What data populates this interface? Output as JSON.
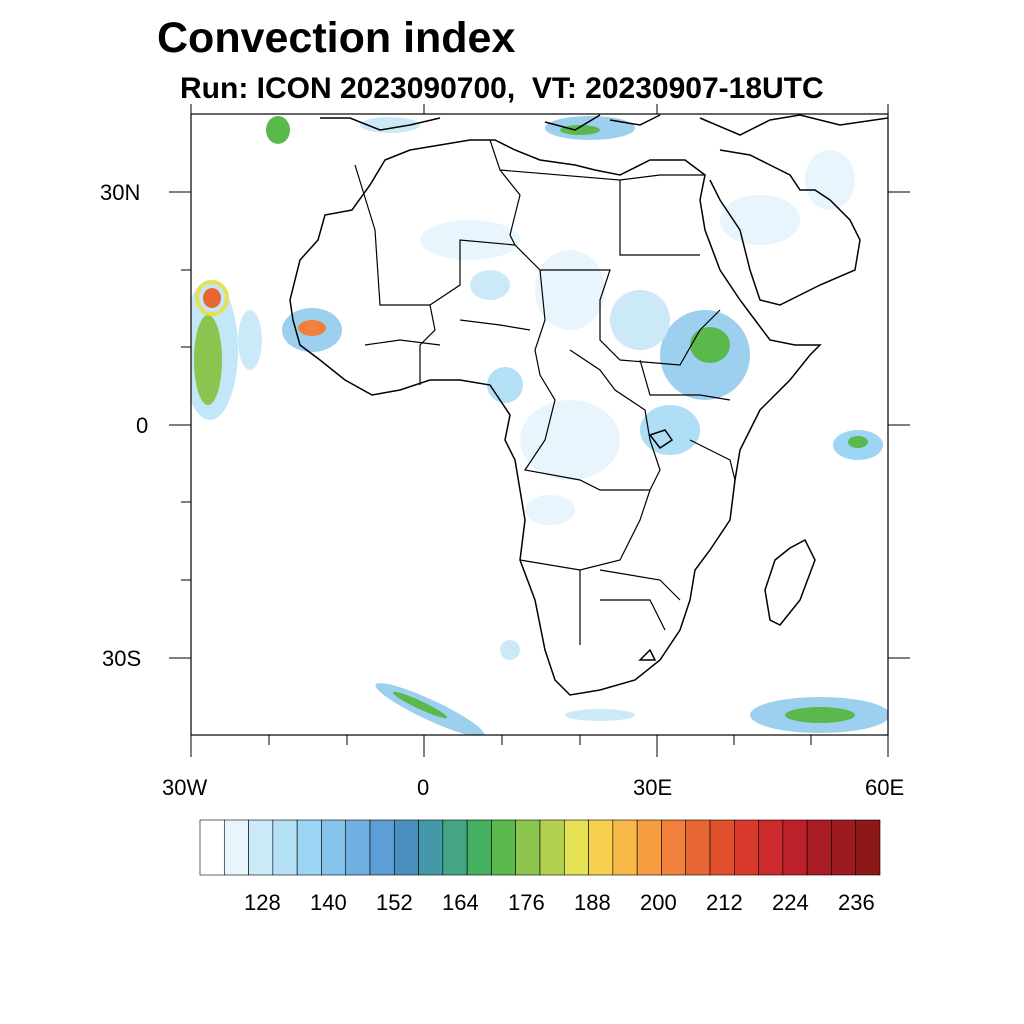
{
  "title": "Convection index",
  "subtitle": "Run: ICON 2023090700,  VT: 20230907-18UTC",
  "axes": {
    "x_labels": [
      "30W",
      "0",
      "30E",
      "60E"
    ],
    "y_labels": [
      "30N",
      "0",
      "30S"
    ]
  },
  "colorbar": {
    "labels": [
      "128",
      "140",
      "152",
      "164",
      "176",
      "188",
      "200",
      "212",
      "224",
      "236"
    ],
    "colors": [
      "#ffffff",
      "#e8f5fc",
      "#cce9f8",
      "#b4e0f6",
      "#9cd6f4",
      "#84c4ea",
      "#6fb0e0",
      "#5b9fd6",
      "#4a8fbe",
      "#4499a8",
      "#44a584",
      "#44b060",
      "#5ab84c",
      "#8cc450",
      "#b4d050",
      "#e4e254",
      "#f8d050",
      "#f8b848",
      "#f89c40",
      "#f0803c",
      "#e86634",
      "#e0502c",
      "#d83a2c",
      "#cc2a2c",
      "#bc2028",
      "#aa1c24",
      "#9c1a20",
      "#8c1818"
    ]
  }
}
